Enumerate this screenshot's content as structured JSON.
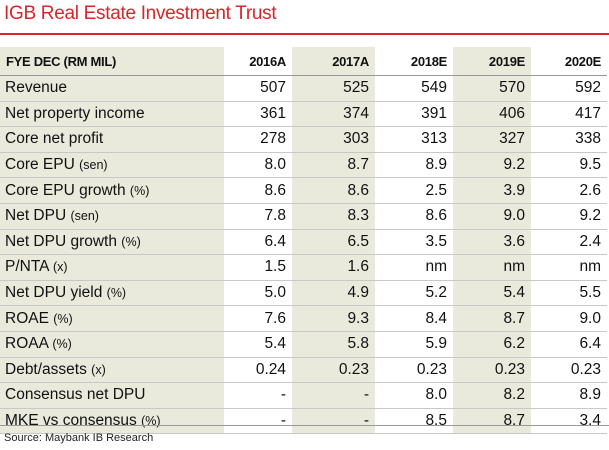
{
  "title": "IGB Real Estate Investment Trust",
  "table": {
    "header": {
      "label": "FYE DEC (RM MIL)",
      "years": [
        "2016A",
        "2017A",
        "2018E",
        "2019E",
        "2020E"
      ]
    },
    "rows": [
      {
        "label": "Revenue",
        "unit": "",
        "values": [
          "507",
          "525",
          "549",
          "570",
          "592"
        ]
      },
      {
        "label": "Net property income",
        "unit": "",
        "values": [
          "361",
          "374",
          "391",
          "406",
          "417"
        ]
      },
      {
        "label": "Core net profit",
        "unit": "",
        "values": [
          "278",
          "303",
          "313",
          "327",
          "338"
        ]
      },
      {
        "label": "Core EPU",
        "unit": "(sen)",
        "values": [
          "8.0",
          "8.7",
          "8.9",
          "9.2",
          "9.5"
        ]
      },
      {
        "label": "Core EPU growth",
        "unit": "(%)",
        "values": [
          "8.6",
          "8.6",
          "2.5",
          "3.9",
          "2.6"
        ]
      },
      {
        "label": "Net DPU",
        "unit": "(sen)",
        "values": [
          "7.8",
          "8.3",
          "8.6",
          "9.0",
          "9.2"
        ]
      },
      {
        "label": "Net DPU growth",
        "unit": "(%)",
        "values": [
          "6.4",
          "6.5",
          "3.5",
          "3.6",
          "2.4"
        ]
      },
      {
        "label": "P/NTA",
        "unit": "(x)",
        "values": [
          "1.5",
          "1.6",
          "nm",
          "nm",
          "nm"
        ]
      },
      {
        "label": "Net DPU yield",
        "unit": "(%)",
        "values": [
          "5.0",
          "4.9",
          "5.2",
          "5.4",
          "5.5"
        ]
      },
      {
        "label": "ROAE",
        "unit": "(%)",
        "values": [
          "7.6",
          "9.3",
          "8.4",
          "8.7",
          "9.0"
        ]
      },
      {
        "label": "ROAA",
        "unit": "(%)",
        "values": [
          "5.4",
          "5.8",
          "5.9",
          "6.2",
          "6.4"
        ]
      },
      {
        "label": "Debt/assets",
        "unit": "(x)",
        "values": [
          "0.24",
          "0.23",
          "0.23",
          "0.23",
          "0.23"
        ]
      },
      {
        "label": "Consensus net DPU",
        "unit": "",
        "values": [
          "-",
          "-",
          "8.0",
          "8.2",
          "8.9"
        ]
      },
      {
        "label": "MKE vs consensus",
        "unit": "(%)",
        "values": [
          "-",
          "-",
          "8.5",
          "8.7",
          "3.4"
        ]
      }
    ]
  },
  "source": "Source: Maybank IB Research",
  "colors": {
    "accent": "#d7262b",
    "shade": "#e9eadc"
  }
}
